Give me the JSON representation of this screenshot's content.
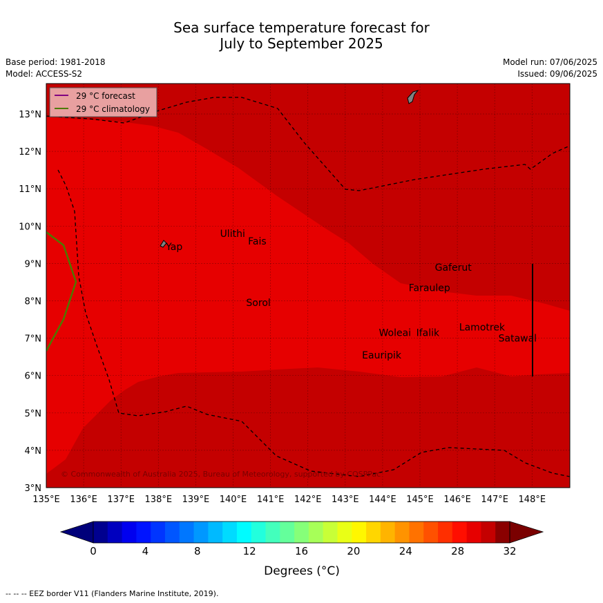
{
  "header": {
    "title_line1": "Sea surface temperature forecast for",
    "title_line2": "July to September 2025",
    "base_period": "Base period: 1981-2018",
    "model": "Model: ACCESS-S2",
    "model_run": "Model run: 07/06/2025",
    "issued": "Issued: 09/06/2025"
  },
  "map": {
    "lon_ticks": [
      "135°E",
      "136°E",
      "137°E",
      "138°E",
      "139°E",
      "140°E",
      "141°E",
      "142°E",
      "143°E",
      "144°E",
      "145°E",
      "146°E",
      "147°E",
      "148°E"
    ],
    "lat_ticks": [
      "3°N",
      "4°N",
      "5°N",
      "6°N",
      "7°N",
      "8°N",
      "9°N",
      "10°N",
      "11°N",
      "12°N",
      "13°N"
    ],
    "lon_range": [
      135,
      149
    ],
    "lat_range": [
      3,
      13.8
    ],
    "places": [
      {
        "name": "Yap",
        "lon": 138.2,
        "lat": 9.45
      },
      {
        "name": "Ulithi",
        "lon": 139.65,
        "lat": 9.8
      },
      {
        "name": "Fais",
        "lon": 140.4,
        "lat": 9.6
      },
      {
        "name": "Gaferut",
        "lon": 145.4,
        "lat": 8.9
      },
      {
        "name": "Faraulep",
        "lon": 144.7,
        "lat": 8.35
      },
      {
        "name": "Sorol",
        "lon": 140.35,
        "lat": 7.95
      },
      {
        "name": "Woleai",
        "lon": 143.9,
        "lat": 7.15
      },
      {
        "name": "Ifalik",
        "lon": 144.9,
        "lat": 7.15
      },
      {
        "name": "Lamotrek",
        "lon": 146.05,
        "lat": 7.3
      },
      {
        "name": "Satawal",
        "lon": 147.1,
        "lat": 7.0
      },
      {
        "name": "Eauripik",
        "lon": 143.45,
        "lat": 6.55
      }
    ],
    "copyright": "© Commonwealth of Australia 2025, Bureau of Meteorology, supported by COSPPac",
    "colors": {
      "warm_region": "#e60000",
      "hot_region": "#c40000",
      "climatology_line": "#4d7a00",
      "forecast_line": "#800080"
    }
  },
  "legend": {
    "forecast_label": "29 °C  forecast",
    "climatology_label": "29 °C  climatology"
  },
  "colorbar": {
    "ticks": [
      "0",
      "4",
      "8",
      "12",
      "16",
      "20",
      "24",
      "28",
      "32"
    ],
    "label": "Degrees (°C)",
    "colors": [
      "#00008f",
      "#0000bf",
      "#0000ef",
      "#0014ff",
      "#0035ff",
      "#0056ff",
      "#0077ff",
      "#0098ff",
      "#00baff",
      "#00dbff",
      "#00fcff",
      "#22ffdd",
      "#43ffbc",
      "#64ff9b",
      "#86ff79",
      "#a7ff58",
      "#c8ff37",
      "#e9ff16",
      "#fff700",
      "#ffd600",
      "#ffb400",
      "#ff9300",
      "#ff7200",
      "#ff5100",
      "#ff2f00",
      "#ff0e00",
      "#e60000",
      "#c40000",
      "#8a0000"
    ]
  },
  "footnote": "--  --  -- EEZ border V11 (Flanders Marine Institute, 2019)."
}
